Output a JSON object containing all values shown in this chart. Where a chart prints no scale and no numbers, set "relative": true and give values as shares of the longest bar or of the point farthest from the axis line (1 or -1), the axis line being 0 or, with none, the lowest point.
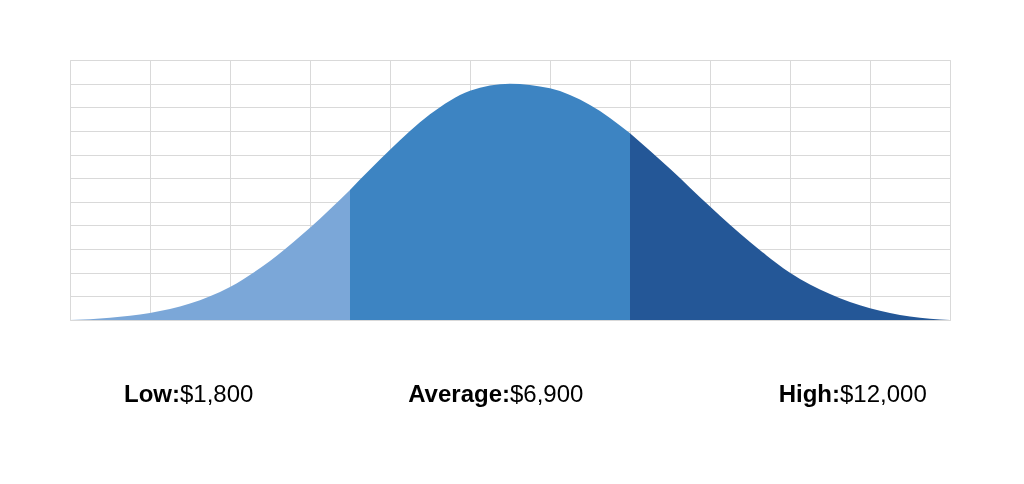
{
  "chart_data": {
    "type": "area",
    "relative": true,
    "grid": true,
    "categories": [
      null,
      null,
      null,
      null,
      null,
      null,
      null,
      null,
      null,
      null,
      null,
      null,
      null,
      null,
      null,
      null,
      null,
      null,
      null,
      null,
      null,
      null,
      null
    ],
    "series": [
      {
        "color": "#7ba7d8",
        "values": [
          0,
          0.01,
          0.03,
          0.07,
          0.14,
          0.25,
          0.39,
          0.55,
          null,
          null,
          null,
          null,
          null,
          null,
          null,
          null,
          null,
          null,
          null,
          null,
          null,
          null,
          null
        ]
      },
      {
        "color": "#3d84c2",
        "values": [
          null,
          null,
          null,
          null,
          null,
          null,
          null,
          0.55,
          0.72,
          0.87,
          0.97,
          1.0,
          0.98,
          0.91,
          0.79,
          null,
          null,
          null,
          null,
          null,
          null,
          null,
          null
        ]
      },
      {
        "color": "#245797",
        "values": [
          null,
          null,
          null,
          null,
          null,
          null,
          null,
          null,
          null,
          null,
          null,
          null,
          null,
          null,
          0.79,
          0.64,
          0.48,
          0.33,
          0.2,
          0.11,
          0.05,
          0.015,
          0
        ]
      }
    ],
    "annotations": [
      "Low:$1,800",
      "Average:$6,900",
      "High:$12,000"
    ]
  }
}
